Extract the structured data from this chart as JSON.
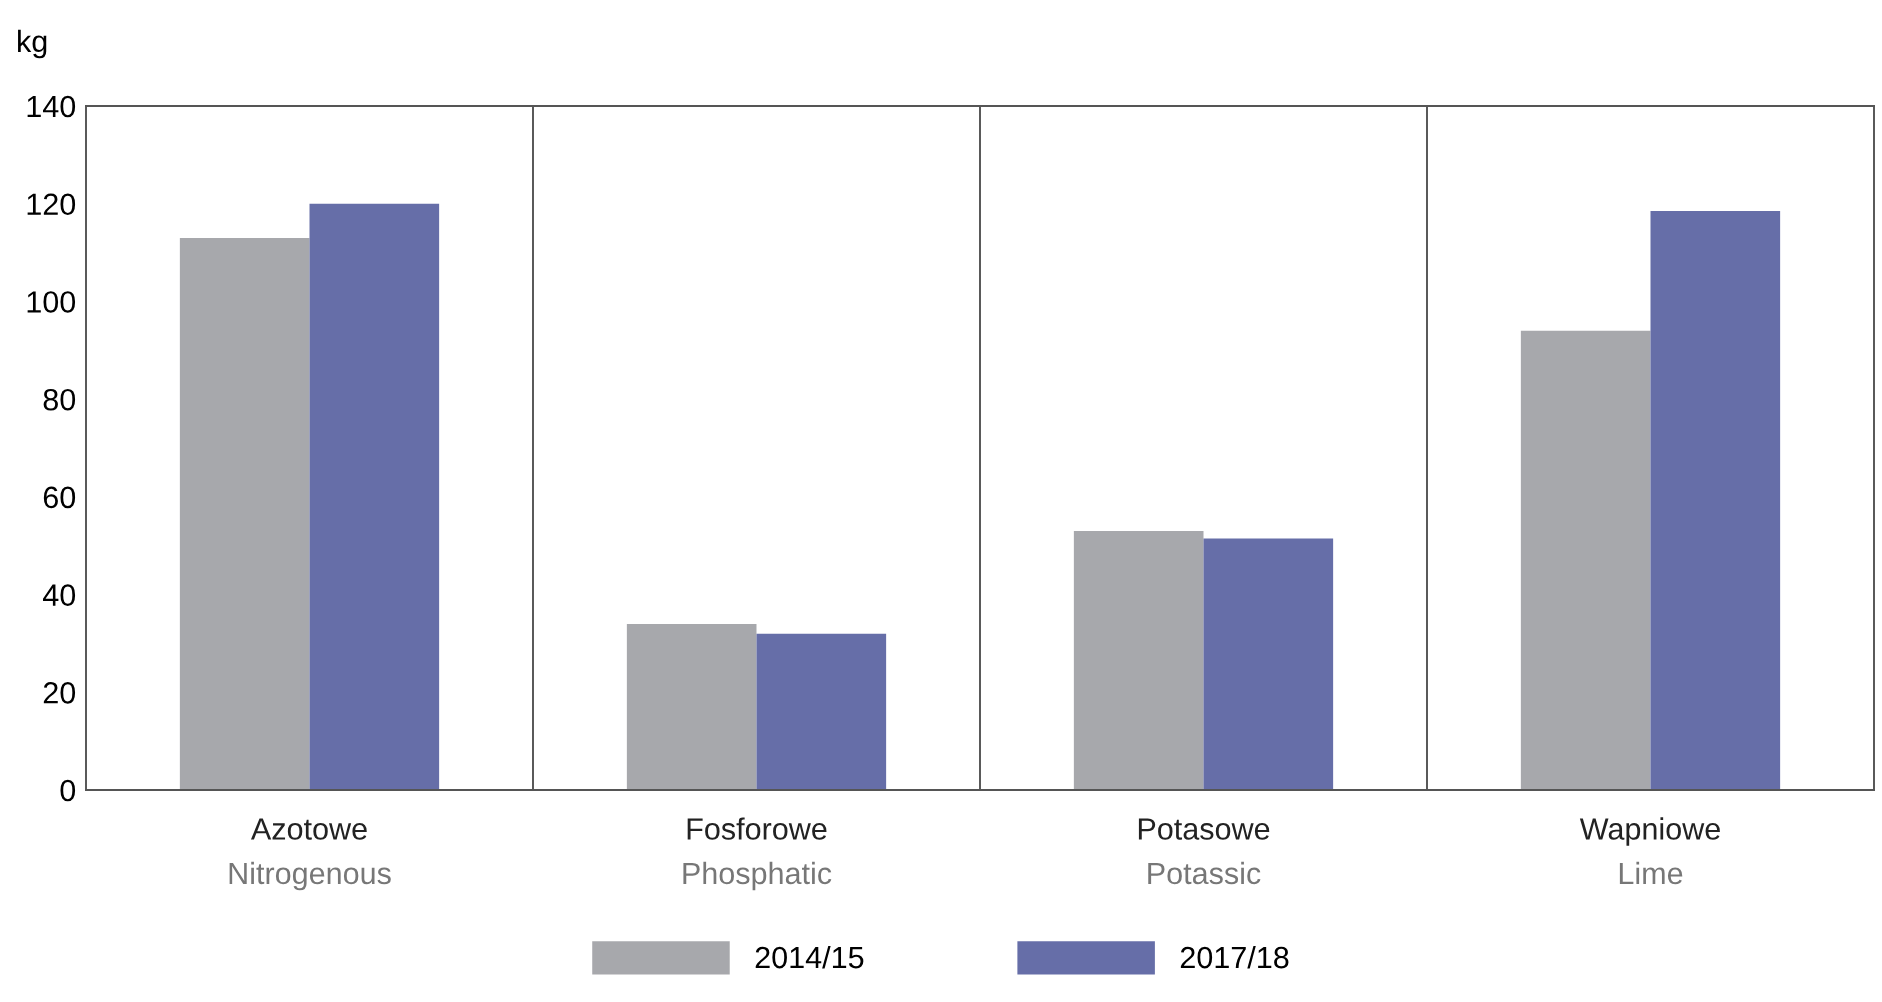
{
  "chart_data": {
    "type": "bar",
    "ylabel": "kg",
    "categories": [
      "Azotowe\nNitrogenous",
      "Fosforowe\nPhosphatic",
      "Potasowe\nPotassic",
      "Wapniowe\nLime"
    ],
    "series": [
      {
        "name": "2014/15",
        "color": "#a7a8ac",
        "values": [
          113,
          34,
          53,
          94
        ]
      },
      {
        "name": "2017/18",
        "color": "#666ea8",
        "values": [
          120,
          32,
          51.5,
          118.5
        ]
      }
    ],
    "ylim": [
      0,
      140
    ],
    "yticks": [
      0,
      20,
      40,
      60,
      80,
      100,
      120,
      140
    ],
    "grid": "x",
    "legend": "bottom"
  }
}
